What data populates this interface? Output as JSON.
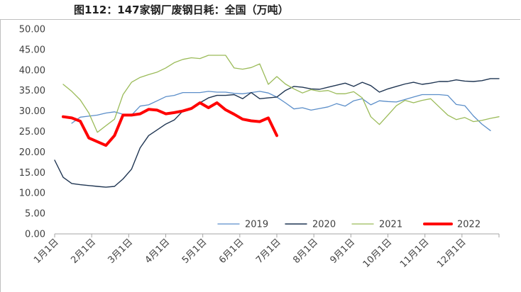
{
  "header": {
    "title": "图112：147家钢厂废钢日耗：全国（万吨）"
  },
  "chart_data": {
    "type": "line",
    "title": "图112：147家钢厂废钢日耗：全国（万吨）",
    "xlabel": "",
    "ylabel": "",
    "x_ticks": [
      "1月1日",
      "2月1日",
      "3月1日",
      "4月1日",
      "5月1日",
      "6月1日",
      "7月1日",
      "8月1日",
      "9月1日",
      "10月1日",
      "11月1日",
      "12月1日"
    ],
    "y_ticks": [
      "0.00",
      "5.00",
      "10.00",
      "15.00",
      "20.00",
      "25.00",
      "30.00",
      "35.00",
      "40.00",
      "45.00",
      "50.00"
    ],
    "ylim": [
      0,
      50
    ],
    "xlim_weeks": [
      0,
      52
    ],
    "grid": false,
    "legend_position": "bottom",
    "x_unit": "week",
    "series": [
      {
        "name": "2019",
        "color": "#5b8ec9",
        "line_width": 1.3,
        "x": [
          2,
          3,
          5,
          6,
          7,
          8,
          9,
          10,
          11,
          12,
          13,
          14,
          15,
          16,
          17,
          18,
          19,
          20,
          21,
          22,
          23,
          24,
          25,
          26,
          27,
          28,
          29,
          30,
          31,
          32,
          33,
          34,
          35,
          36,
          37,
          38,
          39,
          40,
          41,
          42,
          43,
          44,
          45,
          46,
          47,
          48,
          49,
          50,
          51
        ],
        "values": [
          27.0,
          28.5,
          29.0,
          29.5,
          29.8,
          29.2,
          29.0,
          31.2,
          31.5,
          32.5,
          33.5,
          33.8,
          34.5,
          34.5,
          34.5,
          34.8,
          34.6,
          34.6,
          34.3,
          34.2,
          34.5,
          34.8,
          34.4,
          33.4,
          32.0,
          30.5,
          30.8,
          30.2,
          30.6,
          31.0,
          31.8,
          31.2,
          32.5,
          33.0,
          31.5,
          32.5,
          32.3,
          32.2,
          32.8,
          33.4,
          34.0,
          34.0,
          34.0,
          33.8,
          31.6,
          31.3,
          28.8,
          26.8,
          25.2
        ]
      },
      {
        "name": "2020",
        "color": "#1f3552",
        "line_width": 1.4,
        "x": [
          0,
          1,
          2,
          3,
          4,
          5,
          6,
          7,
          8,
          9,
          10,
          11,
          12,
          13,
          14,
          15,
          16,
          17,
          18,
          19,
          20,
          21,
          22,
          23,
          24,
          25,
          26,
          27,
          28,
          29,
          30,
          31,
          32,
          33,
          34,
          35,
          36,
          37,
          38,
          39,
          40,
          41,
          42,
          43,
          44,
          45,
          46,
          47,
          48,
          49,
          50,
          51,
          52
        ],
        "values": [
          18.0,
          13.8,
          12.3,
          12.0,
          11.8,
          11.6,
          11.4,
          11.6,
          13.4,
          15.8,
          21.0,
          24.0,
          25.4,
          26.8,
          27.8,
          30.0,
          30.5,
          32.0,
          33.2,
          33.8,
          33.8,
          34.0,
          33.0,
          34.5,
          33.0,
          33.2,
          33.4,
          35.0,
          36.0,
          35.8,
          35.4,
          35.3,
          35.8,
          36.3,
          36.8,
          36.0,
          37.0,
          36.2,
          34.6,
          35.4,
          36.0,
          36.6,
          37.0,
          36.5,
          36.8,
          37.2,
          37.2,
          37.6,
          37.3,
          37.2,
          37.4,
          37.9,
          37.9
        ]
      },
      {
        "name": "2021",
        "color": "#9bbb59",
        "line_width": 1.3,
        "x": [
          1,
          2,
          3,
          4,
          5,
          6,
          7,
          8,
          9,
          10,
          11,
          12,
          13,
          14,
          15,
          16,
          17,
          18,
          19,
          20,
          21,
          22,
          23,
          24,
          25,
          26,
          27,
          28,
          29,
          30,
          31,
          32,
          33,
          34,
          35,
          36,
          37,
          38,
          39,
          40,
          41,
          42,
          43,
          44,
          45,
          46,
          47,
          48,
          49,
          50,
          51,
          52
        ],
        "values": [
          36.5,
          34.8,
          32.7,
          29.5,
          24.8,
          26.4,
          28.0,
          34.0,
          37.0,
          38.2,
          38.9,
          39.5,
          40.5,
          41.8,
          42.6,
          43.0,
          42.8,
          43.6,
          43.6,
          43.6,
          40.5,
          40.2,
          40.6,
          41.5,
          36.5,
          38.4,
          36.6,
          35.4,
          34.4,
          35.2,
          34.8,
          35.0,
          34.2,
          34.2,
          34.7,
          33.2,
          28.6,
          26.7,
          29.0,
          31.3,
          32.6,
          32.0,
          32.6,
          33.0,
          31.0,
          29.0,
          27.9,
          28.4,
          27.4,
          27.7,
          28.2,
          28.6
        ]
      },
      {
        "name": "2022",
        "color": "#ff0000",
        "line_width": 4,
        "x": [
          1,
          2,
          3,
          4,
          5,
          6,
          7,
          8,
          9,
          10,
          11,
          12,
          13,
          14,
          15,
          16,
          17,
          18,
          19,
          20,
          21,
          22,
          23,
          24,
          25,
          26
        ],
        "values": [
          28.6,
          28.3,
          27.5,
          23.4,
          22.5,
          21.6,
          24.0,
          29.0,
          29.0,
          29.3,
          30.4,
          30.2,
          29.3,
          29.6,
          30.0,
          30.6,
          32.0,
          30.8,
          32.0,
          30.3,
          29.2,
          28.0,
          27.6,
          27.4,
          28.3,
          24.0
        ]
      }
    ]
  }
}
